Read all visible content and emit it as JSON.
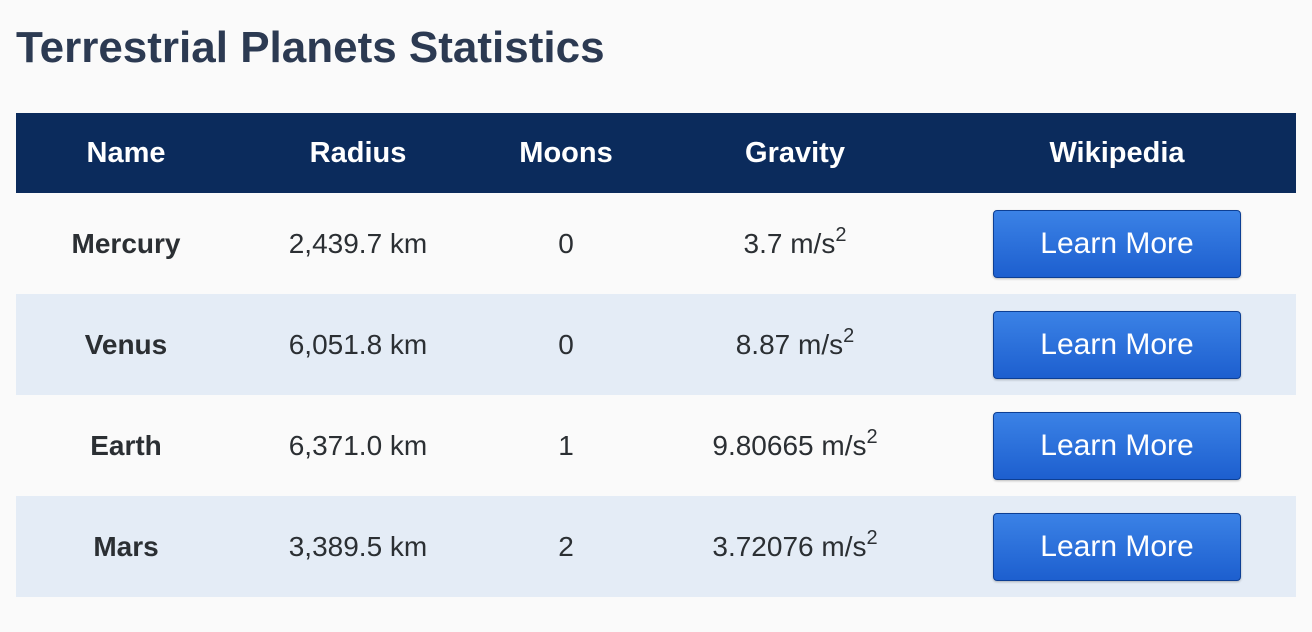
{
  "page": {
    "title": "Terrestrial Planets Statistics"
  },
  "table": {
    "headers": {
      "name": "Name",
      "radius": "Radius",
      "moons": "Moons",
      "gravity": "Gravity",
      "wikipedia": "Wikipedia"
    },
    "rows": [
      {
        "name": "Mercury",
        "radius": "2,439.7 km",
        "moons": "0",
        "gravity_value": "3.7 m/s",
        "gravity_exp": "2",
        "button_label": "Learn More"
      },
      {
        "name": "Venus",
        "radius": "6,051.8 km",
        "moons": "0",
        "gravity_value": "8.87 m/s",
        "gravity_exp": "2",
        "button_label": "Learn More"
      },
      {
        "name": "Earth",
        "radius": "6,371.0 km",
        "moons": "1",
        "gravity_value": "9.80665 m/s",
        "gravity_exp": "2",
        "button_label": "Learn More"
      },
      {
        "name": "Mars",
        "radius": "3,389.5 km",
        "moons": "2",
        "gravity_value": "3.72076 m/s",
        "gravity_exp": "2",
        "button_label": "Learn More"
      }
    ]
  },
  "colors": {
    "header_bg": "#0b2b5c",
    "alt_row_bg": "#e4ecf6",
    "button_bg": "#2a6fdb",
    "title_color": "#2c3a52"
  }
}
